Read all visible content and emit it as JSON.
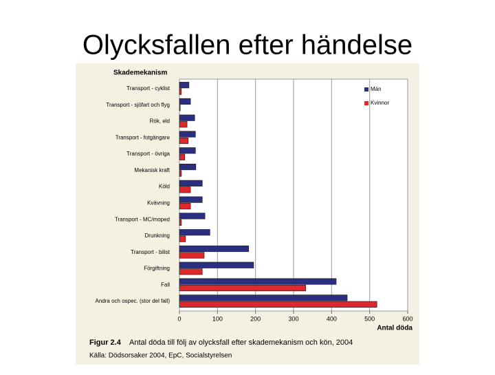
{
  "chart_data": {
    "type": "barh",
    "title": "Olycksfallen efter händelse",
    "ylabel": "Skademekanism",
    "xlabel": "Antal döda",
    "caption_label": "Figur 2.4",
    "caption": "Antal döda till följ av olycksfall efter skademekanism och kön, 2004",
    "source": "Källa: Dödsorsaker 2004, EpC, Socialstyrelsen",
    "categories": [
      "Transport - cyklist",
      "Transport - sjöfart och flyg",
      "Rök, eld",
      "Transport - fotgängare",
      "Transport - övriga",
      "Mekanisk kraft",
      "Köld",
      "Kvävning",
      "Transport - MC/moped",
      "Drunkning",
      "Transport - bilist",
      "Förgiftning",
      "Fall",
      "Andra och ospec. (stor del fall)"
    ],
    "series": [
      {
        "name": "Män",
        "color": "#2b2f80",
        "values": [
          25,
          29,
          40,
          42,
          42,
          43,
          60,
          60,
          67,
          80,
          182,
          195,
          412,
          441
        ]
      },
      {
        "name": "Kvinnor",
        "color": "#e0282c",
        "values": [
          5,
          2,
          20,
          23,
          14,
          5,
          29,
          29,
          5,
          16,
          65,
          60,
          332,
          519
        ]
      }
    ],
    "xlim": [
      0,
      600
    ],
    "xticks": [
      0,
      100,
      200,
      300,
      400,
      500,
      600
    ],
    "grid": true,
    "legend": "top-right"
  }
}
